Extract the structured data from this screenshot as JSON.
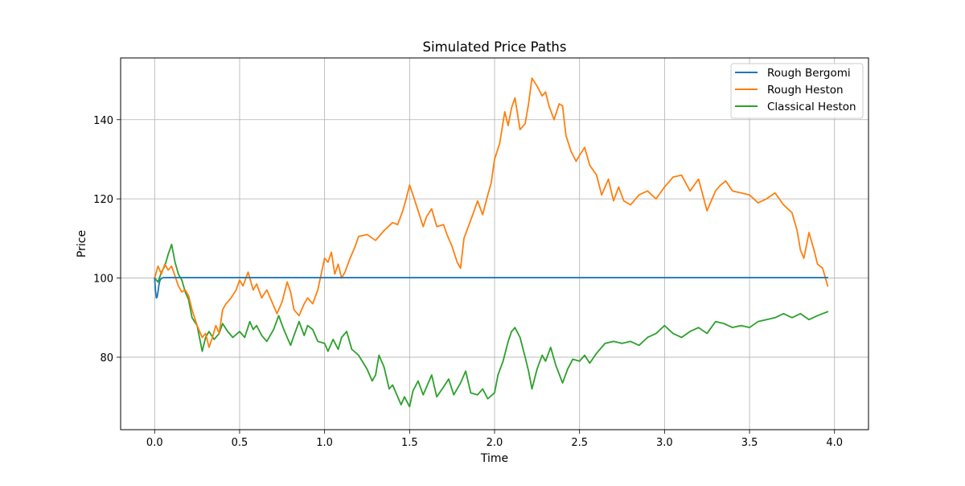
{
  "chart_data": {
    "type": "line",
    "title": "Simulated Price Paths",
    "xlabel": "Time",
    "ylabel": "Price",
    "xlim": [
      -0.2,
      4.2
    ],
    "ylim": [
      61.7,
      155.6
    ],
    "xticks": [
      0.0,
      0.5,
      1.0,
      1.5,
      2.0,
      2.5,
      3.0,
      3.5,
      4.0
    ],
    "xtick_labels": [
      "0.0",
      "0.5",
      "1.0",
      "1.5",
      "2.0",
      "2.5",
      "3.0",
      "3.5",
      "4.0"
    ],
    "yticks": [
      80,
      100,
      120,
      140
    ],
    "ytick_labels": [
      "80",
      "100",
      "120",
      "140"
    ],
    "grid": true,
    "legend_position": "top-right",
    "series": [
      {
        "name": "Rough Bergomi",
        "color": "#1f77b4",
        "x": [
          0.0,
          0.005,
          0.01,
          0.015,
          0.02,
          0.025,
          0.03,
          0.035,
          0.04,
          0.045,
          0.05,
          0.06,
          0.08,
          0.1,
          0.2,
          1.0,
          2.0,
          3.0,
          3.96
        ],
        "y": [
          100.0,
          97.0,
          95.0,
          95.2,
          96.5,
          98.2,
          99.2,
          99.7,
          99.9,
          100.0,
          100.1,
          100.1,
          100.1,
          100.1,
          100.1,
          100.1,
          100.1,
          100.1,
          100.1
        ]
      },
      {
        "name": "Rough Heston",
        "color": "#ff7f0e",
        "x": [
          0.0,
          0.02,
          0.04,
          0.06,
          0.08,
          0.1,
          0.12,
          0.14,
          0.16,
          0.18,
          0.2,
          0.22,
          0.25,
          0.28,
          0.3,
          0.32,
          0.34,
          0.36,
          0.38,
          0.4,
          0.42,
          0.45,
          0.48,
          0.5,
          0.52,
          0.55,
          0.58,
          0.6,
          0.63,
          0.66,
          0.7,
          0.72,
          0.75,
          0.78,
          0.8,
          0.82,
          0.85,
          0.88,
          0.9,
          0.93,
          0.96,
          0.98,
          1.0,
          1.02,
          1.04,
          1.06,
          1.08,
          1.1,
          1.12,
          1.15,
          1.18,
          1.2,
          1.25,
          1.3,
          1.35,
          1.4,
          1.43,
          1.46,
          1.48,
          1.5,
          1.52,
          1.55,
          1.58,
          1.6,
          1.63,
          1.66,
          1.7,
          1.72,
          1.75,
          1.78,
          1.8,
          1.82,
          1.85,
          1.88,
          1.9,
          1.93,
          1.96,
          1.98,
          2.0,
          2.03,
          2.06,
          2.08,
          2.1,
          2.12,
          2.15,
          2.18,
          2.2,
          2.22,
          2.25,
          2.28,
          2.3,
          2.32,
          2.35,
          2.38,
          2.4,
          2.42,
          2.45,
          2.48,
          2.5,
          2.53,
          2.56,
          2.6,
          2.63,
          2.67,
          2.7,
          2.73,
          2.76,
          2.8,
          2.85,
          2.9,
          2.95,
          3.0,
          3.05,
          3.1,
          3.15,
          3.2,
          3.25,
          3.3,
          3.33,
          3.36,
          3.4,
          3.45,
          3.5,
          3.55,
          3.6,
          3.65,
          3.7,
          3.75,
          3.78,
          3.8,
          3.82,
          3.85,
          3.88,
          3.9,
          3.93,
          3.96
        ],
        "y": [
          100.0,
          103.0,
          101.0,
          103.5,
          102.0,
          103.0,
          100.5,
          98.0,
          96.5,
          97.0,
          95.5,
          92.0,
          88.0,
          85.0,
          86.0,
          82.5,
          85.0,
          88.0,
          86.0,
          92.0,
          93.5,
          95.0,
          97.0,
          99.5,
          98.0,
          101.5,
          97.0,
          98.5,
          95.0,
          97.0,
          93.0,
          91.0,
          94.0,
          99.0,
          96.5,
          92.0,
          90.5,
          93.5,
          95.0,
          93.5,
          97.0,
          101.0,
          105.0,
          104.0,
          106.5,
          101.0,
          103.5,
          100.0,
          101.5,
          105.0,
          108.0,
          110.5,
          111.0,
          109.5,
          112.0,
          114.0,
          113.5,
          117.0,
          120.0,
          123.5,
          121.0,
          117.0,
          113.0,
          115.5,
          117.5,
          113.0,
          113.5,
          111.0,
          108.0,
          104.0,
          102.5,
          110.0,
          113.5,
          117.0,
          119.5,
          116.0,
          121.0,
          124.0,
          130.0,
          134.0,
          142.0,
          138.5,
          143.0,
          145.5,
          137.5,
          139.0,
          144.0,
          150.5,
          148.5,
          146.0,
          147.0,
          143.5,
          140.0,
          144.0,
          143.5,
          136.0,
          132.0,
          129.5,
          131.0,
          133.0,
          128.5,
          126.0,
          121.0,
          125.0,
          119.5,
          123.0,
          119.5,
          118.5,
          121.0,
          122.0,
          120.0,
          123.0,
          125.5,
          126.0,
          122.0,
          125.0,
          117.0,
          122.0,
          123.5,
          124.5,
          122.0,
          121.5,
          121.0,
          119.0,
          120.0,
          121.5,
          118.5,
          116.5,
          112.0,
          107.0,
          105.0,
          111.5,
          107.0,
          103.5,
          102.5,
          98.0
        ]
      },
      {
        "name": "Classical Heston",
        "color": "#2ca02c",
        "x": [
          0.0,
          0.02,
          0.04,
          0.06,
          0.08,
          0.1,
          0.12,
          0.14,
          0.16,
          0.18,
          0.2,
          0.22,
          0.25,
          0.28,
          0.3,
          0.32,
          0.35,
          0.38,
          0.4,
          0.43,
          0.46,
          0.5,
          0.53,
          0.56,
          0.58,
          0.6,
          0.63,
          0.66,
          0.7,
          0.73,
          0.76,
          0.8,
          0.82,
          0.85,
          0.88,
          0.9,
          0.93,
          0.96,
          1.0,
          1.02,
          1.05,
          1.08,
          1.1,
          1.13,
          1.16,
          1.2,
          1.25,
          1.28,
          1.3,
          1.32,
          1.35,
          1.38,
          1.4,
          1.43,
          1.45,
          1.47,
          1.5,
          1.52,
          1.55,
          1.58,
          1.6,
          1.63,
          1.66,
          1.7,
          1.73,
          1.76,
          1.8,
          1.83,
          1.86,
          1.9,
          1.93,
          1.96,
          2.0,
          2.02,
          2.05,
          2.08,
          2.1,
          2.12,
          2.15,
          2.18,
          2.2,
          2.22,
          2.25,
          2.28,
          2.3,
          2.33,
          2.36,
          2.4,
          2.43,
          2.46,
          2.5,
          2.53,
          2.56,
          2.6,
          2.65,
          2.7,
          2.75,
          2.8,
          2.85,
          2.9,
          2.95,
          3.0,
          3.05,
          3.1,
          3.15,
          3.2,
          3.25,
          3.3,
          3.35,
          3.4,
          3.45,
          3.5,
          3.55,
          3.6,
          3.65,
          3.7,
          3.75,
          3.8,
          3.85,
          3.9,
          3.93,
          3.96
        ],
        "y": [
          100.0,
          99.0,
          101.5,
          103.0,
          106.0,
          108.5,
          104.0,
          101.0,
          99.5,
          96.5,
          94.5,
          90.0,
          88.0,
          81.5,
          85.0,
          86.5,
          84.5,
          86.0,
          88.5,
          86.5,
          85.0,
          86.5,
          85.0,
          89.0,
          87.0,
          88.0,
          85.5,
          84.0,
          87.0,
          90.5,
          87.0,
          83.0,
          85.5,
          89.0,
          85.5,
          88.0,
          87.0,
          84.0,
          83.5,
          81.5,
          84.5,
          82.0,
          85.0,
          86.5,
          82.0,
          80.5,
          77.0,
          74.0,
          75.5,
          80.5,
          77.5,
          72.0,
          73.0,
          70.0,
          68.0,
          70.0,
          67.5,
          71.5,
          74.0,
          70.5,
          72.5,
          75.5,
          70.0,
          72.5,
          74.5,
          70.5,
          73.5,
          76.5,
          71.0,
          70.5,
          72.0,
          69.5,
          71.0,
          75.5,
          79.0,
          84.0,
          86.5,
          87.5,
          85.0,
          80.0,
          76.5,
          72.0,
          77.0,
          80.5,
          79.0,
          82.5,
          78.0,
          73.5,
          77.0,
          79.5,
          79.0,
          80.5,
          78.5,
          81.0,
          83.5,
          84.0,
          83.5,
          84.0,
          83.0,
          85.0,
          86.0,
          88.0,
          86.0,
          85.0,
          86.5,
          87.5,
          86.0,
          89.0,
          88.5,
          87.5,
          88.0,
          87.5,
          89.0,
          89.5,
          90.0,
          91.0,
          90.0,
          91.0,
          89.5,
          90.5,
          91.0,
          91.5
        ]
      }
    ]
  }
}
